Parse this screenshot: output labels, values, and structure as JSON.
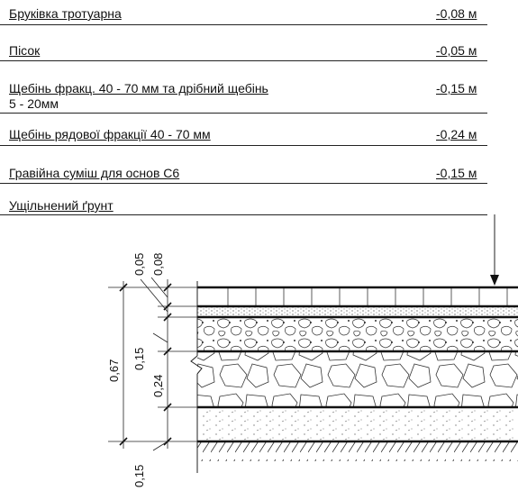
{
  "layers": [
    {
      "name": "Бруківка тротуарна",
      "thickness": "-0,08 м"
    },
    {
      "name": "Пісок",
      "thickness": "-0,05 м"
    },
    {
      "name": "Щебінь фракц.  40 - 70 мм та дрібний щебінь",
      "note": "5 - 20мм",
      "thickness": "-0,15 м"
    },
    {
      "name": "Щебінь рядової фракції 40 - 70 мм",
      "thickness": "-0,24 м"
    },
    {
      "name": "Гравійна суміш для основ С6",
      "thickness": "-0,15 м"
    },
    {
      "name": "Ущільнений ґрунт",
      "thickness": ""
    }
  ],
  "dimensions": {
    "total": "0,67",
    "d_paving": "0,08",
    "d_sand": "0,05",
    "d_fine_gravel": "0,15",
    "d_coarse_gravel": "0,24",
    "d_mix": "0,15"
  }
}
